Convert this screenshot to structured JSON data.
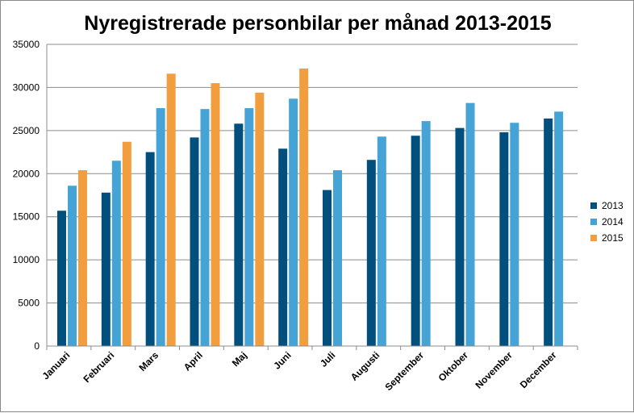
{
  "chart_data": {
    "type": "bar",
    "title": "Nyregistrerade personbilar per månad 2013-2015",
    "xlabel": "",
    "ylabel": "",
    "ylim": [
      0,
      35000
    ],
    "yticks": [
      0,
      5000,
      10000,
      15000,
      20000,
      25000,
      30000,
      35000
    ],
    "grid": true,
    "legend_position": "right",
    "categories": [
      "Januari",
      "Februari",
      "Mars",
      "April",
      "Maj",
      "Juni",
      "Juli",
      "Augusti",
      "September",
      "Oktober",
      "November",
      "December"
    ],
    "series": [
      {
        "name": "2013",
        "color": "#004f7c",
        "values": [
          15700,
          17800,
          22500,
          24200,
          25800,
          22900,
          18100,
          21600,
          24400,
          25300,
          24800,
          26400
        ]
      },
      {
        "name": "2014",
        "color": "#45a3d6",
        "values": [
          18600,
          21500,
          27600,
          27500,
          27600,
          28700,
          20400,
          24300,
          26100,
          28200,
          25900,
          27200
        ]
      },
      {
        "name": "2015",
        "color": "#f29d3e",
        "values": [
          20400,
          23700,
          31600,
          30500,
          29400,
          32200,
          null,
          null,
          null,
          null,
          null,
          null
        ]
      }
    ]
  }
}
